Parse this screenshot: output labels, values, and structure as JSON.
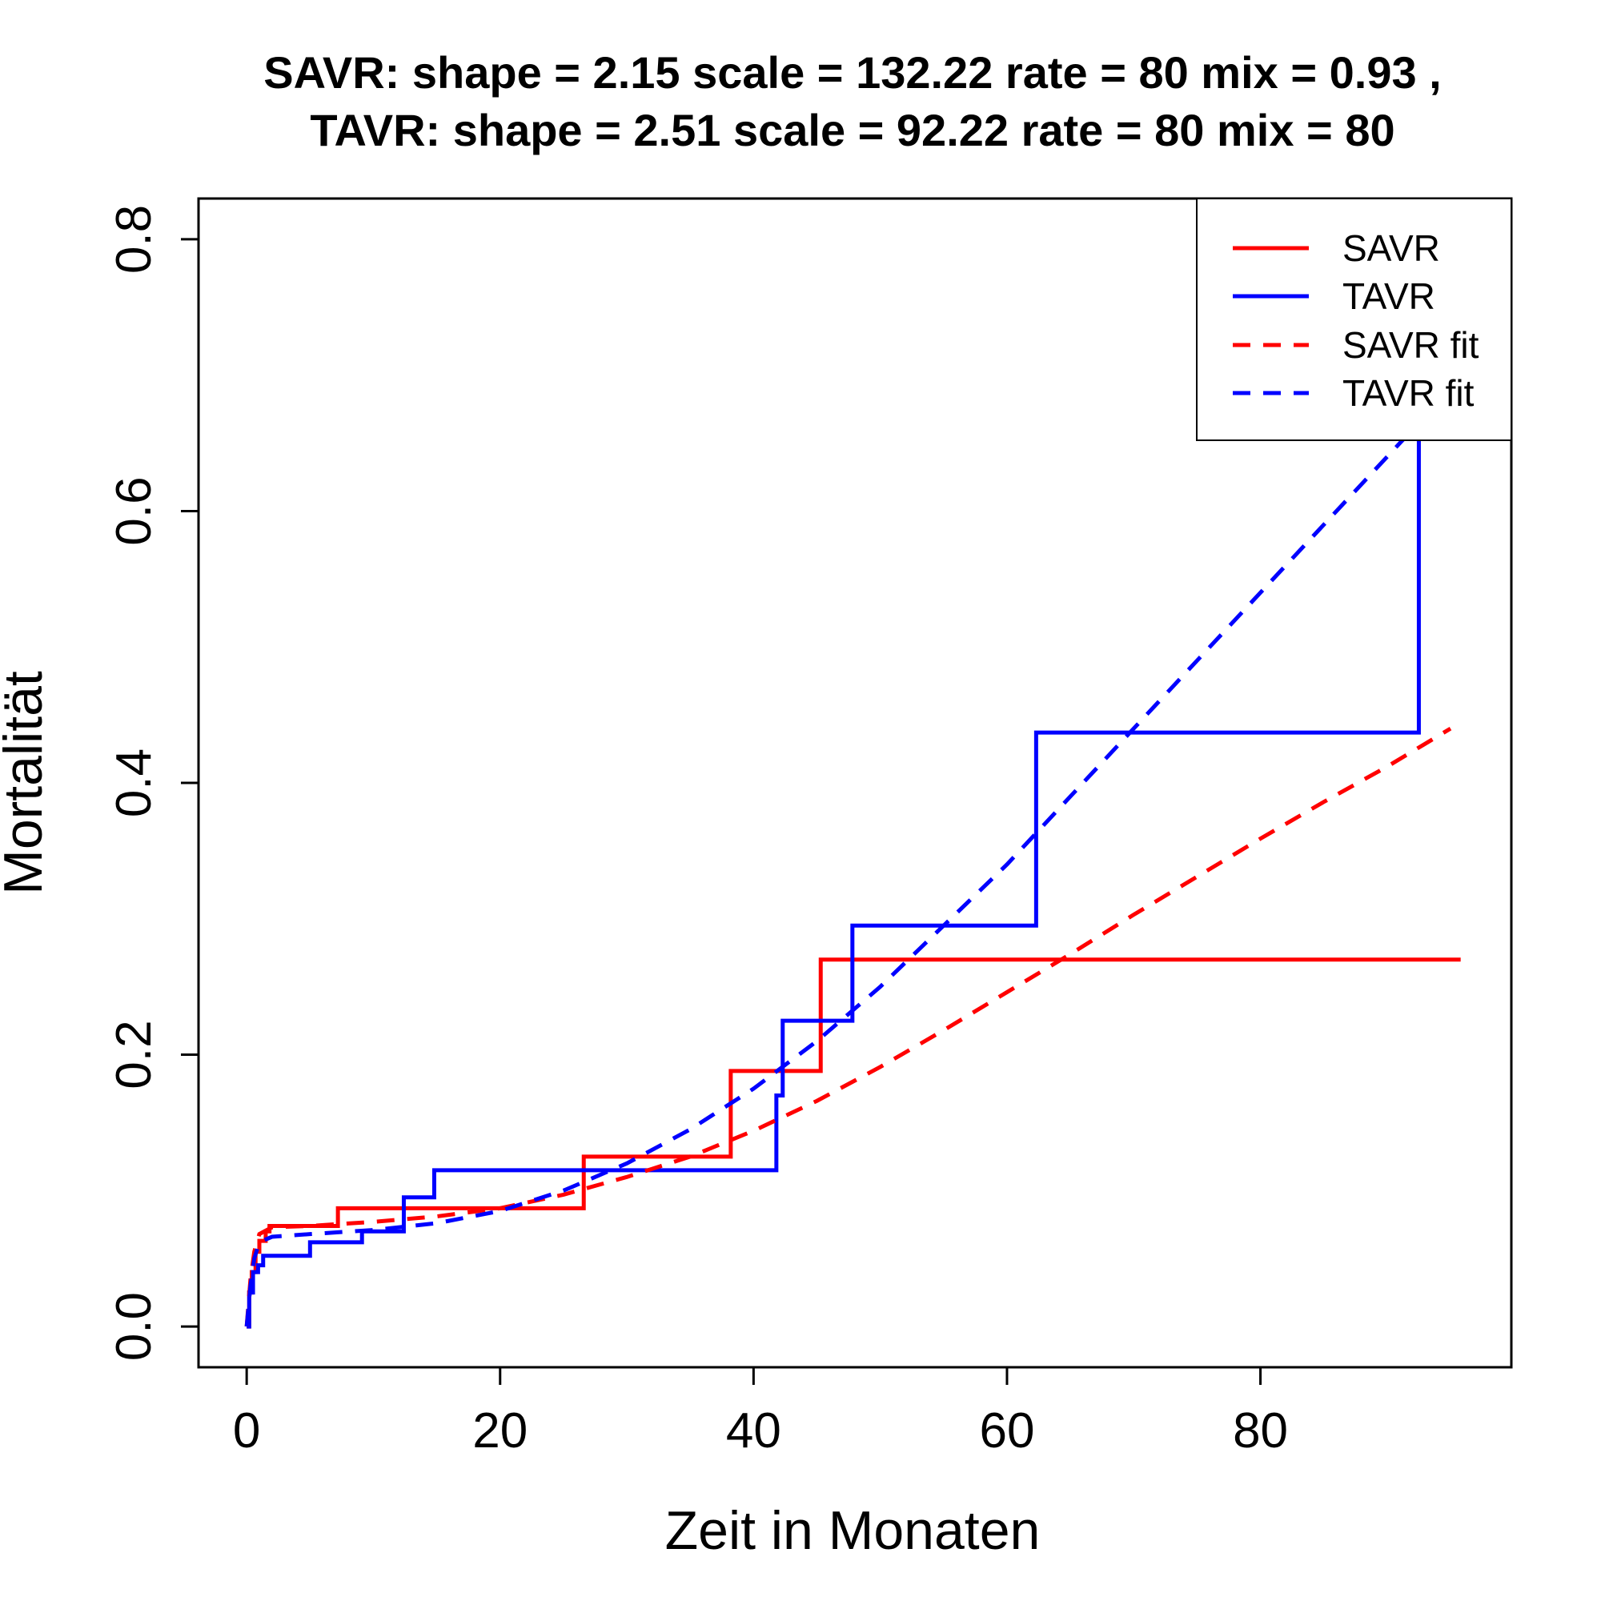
{
  "chart_data": {
    "type": "line",
    "title_lines": [
      "SAVR:  shape =  2.15   scale =  132.22   rate =  80   mix =  0.93 ,",
      "TAVR:  shape =  2.51   scale =  92.22   rate =  80   mix =  80"
    ],
    "xlabel": "Zeit in Monaten",
    "ylabel": "Mortalität",
    "xlim": [
      -3.8,
      99.8
    ],
    "ylim": [
      -0.03,
      0.83
    ],
    "xticks": [
      0,
      20,
      40,
      60,
      80
    ],
    "yticks": [
      0.0,
      0.2,
      0.4,
      0.6,
      0.8
    ],
    "xtick_labels": [
      "0",
      "20",
      "40",
      "60",
      "80"
    ],
    "ytick_labels": [
      "0.0",
      "0.2",
      "0.4",
      "0.6",
      "0.8"
    ],
    "legend_position": "top-right",
    "grid": false,
    "series": [
      {
        "name": "SAVR",
        "style": "step",
        "dash": "solid",
        "color": "#ff0000",
        "x": [
          0,
          0.2,
          0.4,
          0.7,
          1.0,
          1.5,
          1.8,
          7.2,
          26.6,
          38.2,
          45.3,
          95.8
        ],
        "y": [
          0.0,
          0.025,
          0.04,
          0.055,
          0.063,
          0.07,
          0.074,
          0.087,
          0.125,
          0.188,
          0.27,
          0.27
        ]
      },
      {
        "name": "TAVR",
        "style": "step",
        "dash": "solid",
        "color": "#0000ff",
        "x": [
          0,
          0.2,
          0.5,
          0.9,
          1.3,
          5.0,
          9.1,
          12.4,
          14.8,
          41.8,
          42.3,
          47.8,
          62.3,
          92.5
        ],
        "y": [
          0.0,
          0.025,
          0.04,
          0.045,
          0.052,
          0.062,
          0.07,
          0.095,
          0.115,
          0.17,
          0.225,
          0.295,
          0.437,
          0.66
        ]
      },
      {
        "name": "SAVR fit",
        "style": "curve",
        "dash": "dashed",
        "color": "#ff0000",
        "x": [
          0,
          0.3,
          0.6,
          1.0,
          2,
          5,
          10,
          15,
          20,
          25,
          30,
          35,
          40,
          45,
          50,
          55,
          60,
          65,
          70,
          75,
          80,
          85,
          90,
          95
        ],
        "y": [
          0.0,
          0.035,
          0.055,
          0.068,
          0.073,
          0.074,
          0.077,
          0.081,
          0.087,
          0.097,
          0.11,
          0.125,
          0.144,
          0.166,
          0.191,
          0.218,
          0.246,
          0.274,
          0.303,
          0.331,
          0.359,
          0.386,
          0.412,
          0.44
        ]
      },
      {
        "name": "TAVR fit",
        "style": "curve",
        "dash": "dashed",
        "color": "#0000ff",
        "x": [
          0,
          0.3,
          0.6,
          1.0,
          2,
          5,
          10,
          15,
          20,
          25,
          30,
          35,
          40,
          45,
          50,
          55,
          60,
          65,
          70,
          75,
          80,
          85,
          90,
          93
        ],
        "y": [
          0.0,
          0.03,
          0.05,
          0.062,
          0.066,
          0.068,
          0.071,
          0.076,
          0.085,
          0.1,
          0.12,
          0.145,
          0.175,
          0.21,
          0.25,
          0.295,
          0.34,
          0.39,
          0.44,
          0.49,
          0.54,
          0.59,
          0.64,
          0.67
        ]
      }
    ]
  }
}
